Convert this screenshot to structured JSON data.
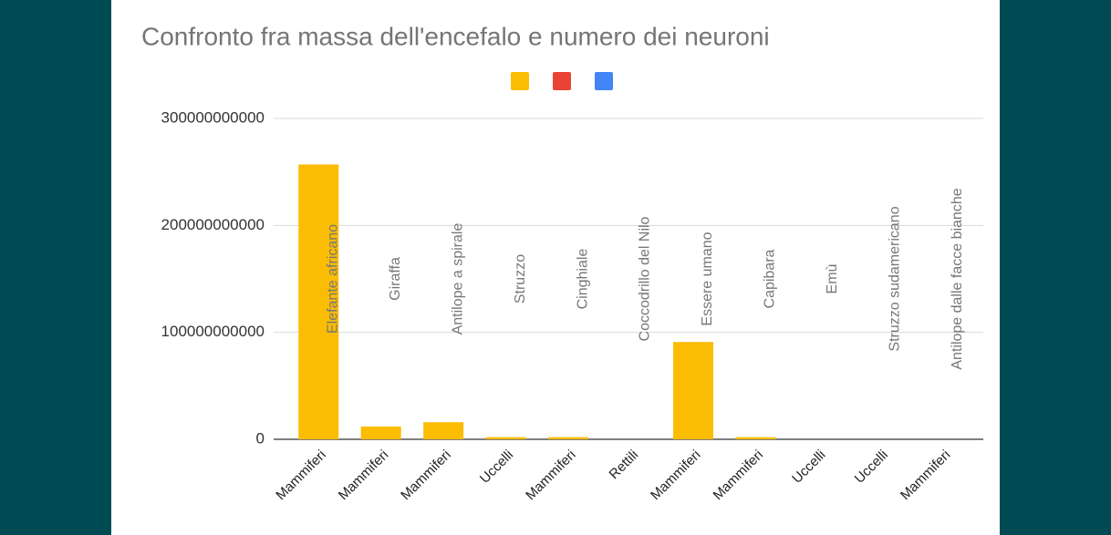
{
  "chart_data": {
    "type": "bar",
    "title": "Confronto fra massa dell'encefalo e numero dei neuroni",
    "categories": [
      "Elefante africano",
      "Giraffa",
      "Antilope a spirale",
      "Struzzo",
      "Cinghiale",
      "Coccodrillo del Nilo",
      "Essere umano",
      "Capibara",
      "Emù",
      "Struzzo sudamericano",
      "Antilope dalle facce bianche"
    ],
    "groups": [
      "Mammiferi",
      "Mammiferi",
      "Mammiferi",
      "Uccelli",
      "Mammiferi",
      "Rettili",
      "Mammiferi",
      "Mammiferi",
      "Uccelli",
      "Uccelli",
      "Mammiferi"
    ],
    "series": [
      {
        "color": "#fbbc04",
        "values": [
          257000000000,
          12000000000,
          16000000000,
          2000000000,
          2000000000,
          0,
          91000000000,
          2000000000,
          0,
          0,
          0
        ]
      },
      {
        "color": "#ea4335",
        "values": [
          0,
          0,
          0,
          0,
          0,
          0,
          0,
          0,
          0,
          0,
          0
        ]
      },
      {
        "color": "#4285f4",
        "values": [
          0,
          0,
          0,
          0,
          0,
          0,
          0,
          0,
          0,
          0,
          0
        ]
      }
    ],
    "ylim": [
      0,
      300000000000
    ],
    "yticks": [
      0,
      100000000000,
      200000000000,
      300000000000
    ],
    "grid": true
  }
}
